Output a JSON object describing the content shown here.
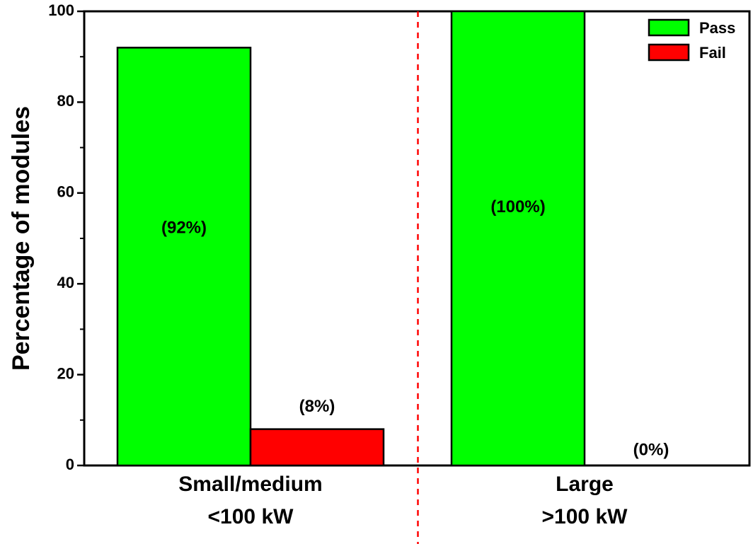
{
  "chart_data": {
    "type": "bar",
    "title": "",
    "xlabel": "",
    "ylabel": "Percentage of modules",
    "ylim": [
      0,
      100
    ],
    "yticks": [
      0,
      20,
      40,
      60,
      80,
      100
    ],
    "categories": [
      {
        "line1": "Small/medium",
        "line2": "<100 kW"
      },
      {
        "line1": "Large",
        "line2": ">100 kW"
      }
    ],
    "series": [
      {
        "name": "Pass",
        "color": "#00ff00",
        "values": [
          92,
          100
        ],
        "labels": [
          "(92%)",
          "(100%)"
        ]
      },
      {
        "name": "Fail",
        "color": "#ff0000",
        "values": [
          8,
          0
        ],
        "labels": [
          "(8%)",
          "(0%)"
        ]
      }
    ],
    "legend_position": "top-right",
    "divider_color": "#ff0000"
  }
}
